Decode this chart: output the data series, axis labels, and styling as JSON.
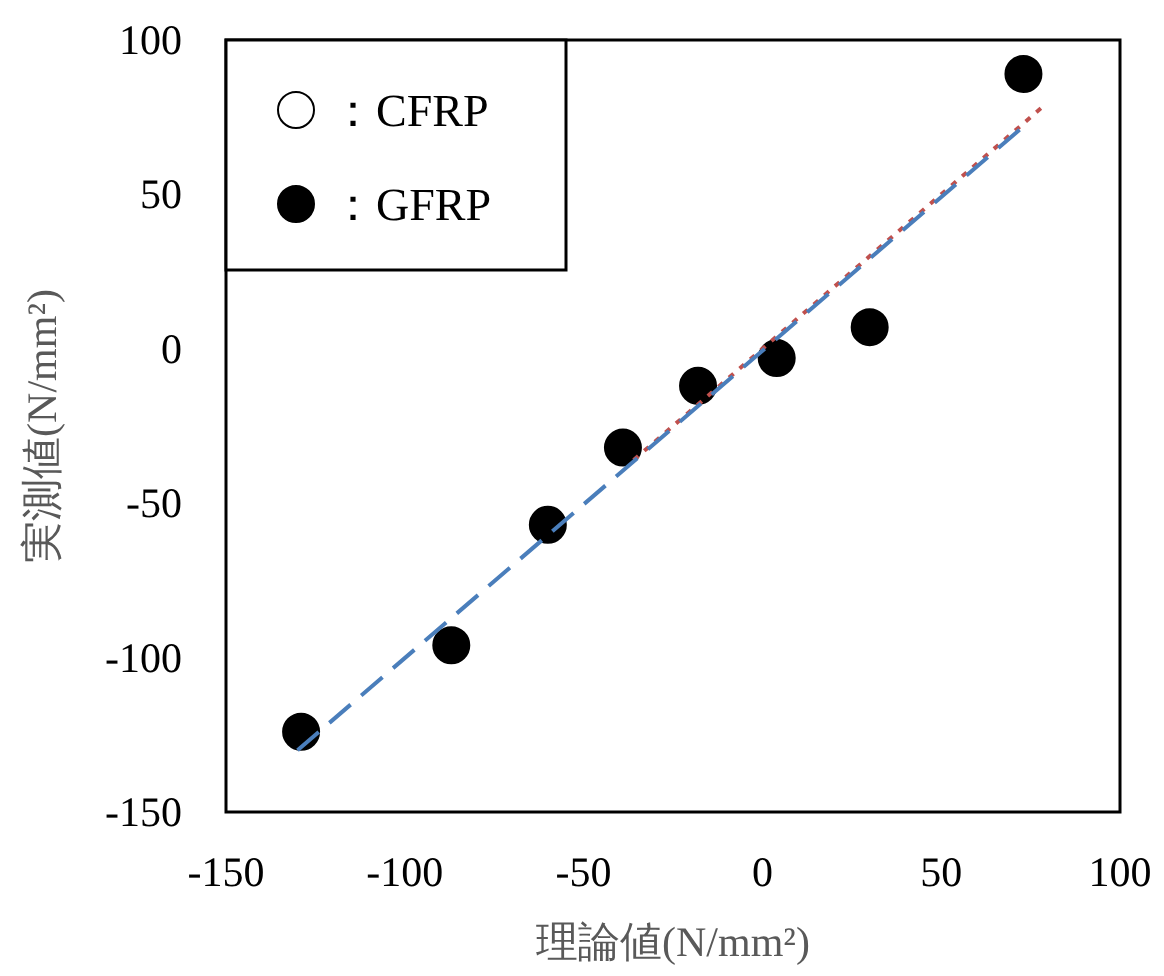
{
  "chart_data": {
    "type": "scatter",
    "xlabel": "理論値(N/mm²)",
    "ylabel": "実測値(N/mm²)",
    "xlim": [
      -150,
      100
    ],
    "xticks": [
      -150,
      -100,
      -50,
      0,
      50,
      100
    ],
    "ylim": [
      -150,
      100
    ],
    "yticks": [
      -150,
      -100,
      -50,
      0,
      50,
      100
    ],
    "grid": false,
    "legend": "top left",
    "marker": "circle",
    "series": [
      {
        "name": "：CFRP",
        "color": "#ffffff"
      },
      {
        "name": "：GFRP",
        "color": "#000000",
        "x": [
          -129,
          -87,
          -60,
          -39,
          -18,
          4,
          30,
          73
        ],
        "values": [
          -124,
          -96,
          -57,
          -32,
          -12,
          -3,
          7,
          89
        ]
      },
      {
        "type": "line",
        "color": "#c0504d",
        "line_style": "dotted",
        "marker": "none",
        "x": [
          -36,
          78
        ],
        "values": [
          -36,
          78
        ]
      },
      {
        "type": "line",
        "color": "#4a7ebb",
        "line_style": "dashed",
        "marker": "none",
        "x": [
          -130,
          73
        ],
        "values": [
          -130,
          72
        ]
      }
    ]
  }
}
